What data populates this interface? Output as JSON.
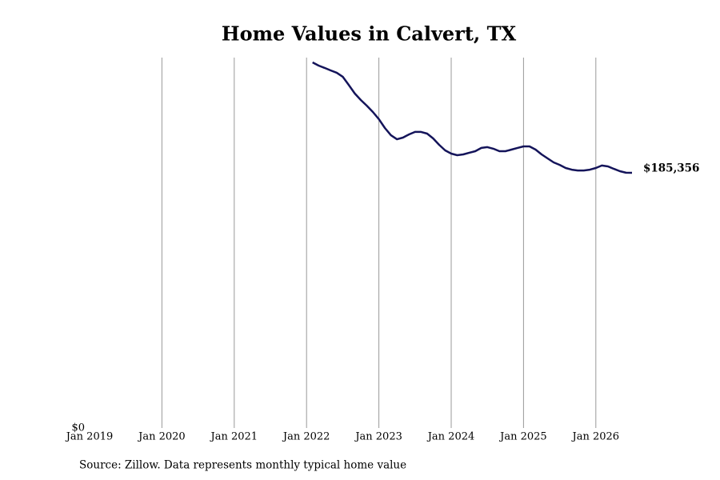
{
  "chart_data": {
    "type": "line",
    "title": "Home Values in Calvert, TX",
    "source": "Source: Zillow. Data represents monthly typical home value",
    "x": [
      "2022-02",
      "2022-03",
      "2022-04",
      "2022-05",
      "2022-06",
      "2022-07",
      "2022-08",
      "2022-09",
      "2022-10",
      "2022-11",
      "2022-12",
      "2023-01",
      "2023-02",
      "2023-03",
      "2023-04",
      "2023-05",
      "2023-06",
      "2023-07",
      "2023-08",
      "2023-09",
      "2023-10",
      "2023-11",
      "2023-12",
      "2024-01",
      "2024-02",
      "2024-03",
      "2024-04",
      "2024-05",
      "2024-06",
      "2024-07",
      "2024-08",
      "2024-09",
      "2024-10",
      "2024-11",
      "2024-12",
      "2025-01",
      "2025-02",
      "2025-03",
      "2025-04",
      "2025-05",
      "2025-06",
      "2025-07",
      "2025-08",
      "2025-09",
      "2025-10",
      "2025-11",
      "2025-12",
      "2026-01",
      "2026-02",
      "2026-03",
      "2026-04",
      "2026-05",
      "2026-06",
      "2026-07"
    ],
    "series": [
      {
        "color": "#14145a",
        "values": [
          265500,
          263200,
          261500,
          259700,
          258000,
          255100,
          249200,
          242900,
          238200,
          234100,
          229500,
          224300,
          217900,
          212600,
          209700,
          210900,
          213200,
          215000,
          215000,
          213800,
          210300,
          205700,
          201600,
          199300,
          198100,
          198700,
          199900,
          201000,
          203400,
          204000,
          202800,
          201000,
          201000,
          202200,
          203400,
          204500,
          204500,
          202200,
          198700,
          195800,
          192900,
          191100,
          188800,
          187600,
          187000,
          187000,
          187600,
          188800,
          190600,
          190000,
          188200,
          186500,
          185400,
          185356
        ],
        "value_labels": [
          null,
          null,
          null,
          null,
          null,
          null,
          null,
          null,
          null,
          null,
          null,
          null,
          null,
          null,
          null,
          null,
          null,
          null,
          null,
          null,
          null,
          null,
          null,
          null,
          null,
          null,
          null,
          null,
          null,
          null,
          null,
          null,
          null,
          null,
          null,
          null,
          null,
          null,
          null,
          null,
          null,
          null,
          null,
          null,
          null,
          null,
          null,
          null,
          null,
          null,
          null,
          null,
          null,
          "$185,356"
        ]
      }
    ],
    "xlim": [
      "2019-01",
      "2026-07"
    ],
    "xticks": [
      {
        "value": "2019-01",
        "label": "Jan 2019"
      },
      {
        "value": "2020-01",
        "label": "Jan 2020"
      },
      {
        "value": "2021-01",
        "label": "Jan 2021"
      },
      {
        "value": "2022-01",
        "label": "Jan 2022"
      },
      {
        "value": "2023-01",
        "label": "Jan 2023"
      },
      {
        "value": "2024-01",
        "label": "Jan 2024"
      },
      {
        "value": "2025-01",
        "label": "Jan 2025"
      },
      {
        "value": "2026-01",
        "label": "Jan 2026"
      }
    ],
    "ylim": [
      0,
      269000
    ],
    "yticks": [
      {
        "value": 0,
        "label": "$0"
      }
    ],
    "grid": true
  }
}
